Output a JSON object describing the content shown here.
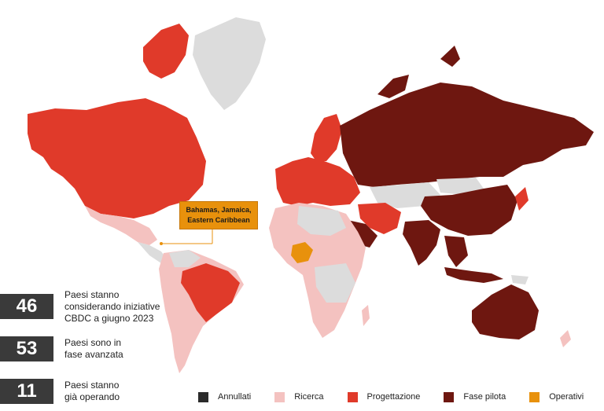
{
  "stats": [
    {
      "number": "46",
      "lines": [
        "Paesi stanno",
        "considerando iniziative",
        "CBDC a giugno 2023"
      ]
    },
    {
      "number": "53",
      "lines": [
        "Paesi sono in",
        "fase avanzata"
      ]
    },
    {
      "number": "11",
      "lines": [
        "Paesi stanno",
        "già operando"
      ]
    }
  ],
  "callout": {
    "lines": [
      "Bahamas, Jamaica,",
      "Eastern Caribbean"
    ]
  },
  "legend": [
    {
      "label": "Annullati",
      "color": "#2b2b2b"
    },
    {
      "label": "Ricerca",
      "color": "#f4c2c0"
    },
    {
      "label": "Progettazione",
      "color": "#e03a2a"
    },
    {
      "label": "Fase pilota",
      "color": "#6e1710"
    },
    {
      "label": "Operativi",
      "color": "#e8910c"
    }
  ],
  "colors": {
    "no_data": "#dcdcdc",
    "research": "#f4c2c0",
    "design": "#e03a2a",
    "pilot": "#6e1710",
    "operative": "#e8910c"
  }
}
